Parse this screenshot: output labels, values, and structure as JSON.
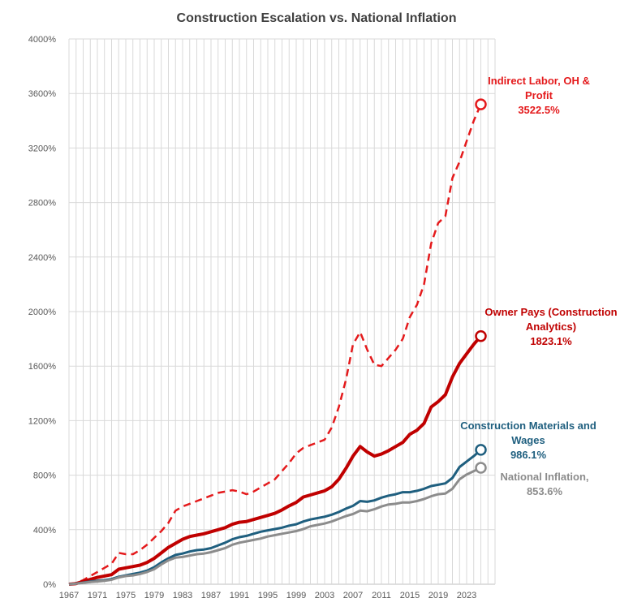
{
  "chart_data": {
    "type": "line",
    "title": "Construction Escalation vs. National Inflation",
    "xlabel": "",
    "ylabel": "",
    "ylim": [
      0,
      40
    ],
    "ytick_labels": [
      "0%",
      "400%",
      "800%",
      "1200%",
      "1600%",
      "2000%",
      "2400%",
      "2800%",
      "3200%",
      "3600%",
      "4000%"
    ],
    "xtick_labels": [
      "1967",
      "1971",
      "1975",
      "1979",
      "1983",
      "1987",
      "1991",
      "1995",
      "1999",
      "2003",
      "2007",
      "2011",
      "2015",
      "2019",
      "2023"
    ],
    "grid": true,
    "legend": "inline annotations at line ends",
    "x": [
      1967,
      1968,
      1969,
      1970,
      1971,
      1972,
      1973,
      1974,
      1975,
      1976,
      1977,
      1978,
      1979,
      1980,
      1981,
      1982,
      1983,
      1984,
      1985,
      1986,
      1987,
      1988,
      1989,
      1990,
      1991,
      1992,
      1993,
      1994,
      1995,
      1996,
      1997,
      1998,
      1999,
      2000,
      2001,
      2002,
      2003,
      2004,
      2005,
      2006,
      2007,
      2008,
      2009,
      2010,
      2011,
      2012,
      2013,
      2014,
      2015,
      2016,
      2017,
      2018,
      2019,
      2020,
      2021,
      2022,
      2023,
      2024,
      2025
    ],
    "series": [
      {
        "color": "#e41a1c",
        "style": "dashed",
        "values": [
          0,
          0.1,
          0.3,
          0.6,
          0.9,
          1.2,
          1.5,
          2.3,
          2.2,
          2.2,
          2.5,
          2.9,
          3.4,
          3.9,
          4.5,
          5.4,
          5.7,
          5.9,
          6.1,
          6.3,
          6.5,
          6.7,
          6.8,
          6.9,
          6.8,
          6.6,
          6.8,
          7.1,
          7.4,
          7.7,
          8.3,
          8.9,
          9.6,
          10.0,
          10.2,
          10.4,
          10.6,
          11.5,
          13.0,
          15.0,
          17.6,
          18.5,
          17.2,
          16.1,
          16.0,
          16.6,
          17.2,
          18.0,
          19.6,
          20.5,
          22.0,
          25.0,
          26.5,
          27.0,
          29.8,
          31.0,
          32.5,
          34.0,
          35.2
        ]
      },
      {
        "color": "#c00000",
        "style": "solid",
        "values": [
          0,
          0.05,
          0.2,
          0.35,
          0.5,
          0.6,
          0.7,
          1.1,
          1.2,
          1.3,
          1.4,
          1.6,
          1.9,
          2.3,
          2.7,
          3.0,
          3.3,
          3.5,
          3.6,
          3.7,
          3.85,
          4.0,
          4.15,
          4.4,
          4.55,
          4.6,
          4.75,
          4.9,
          5.05,
          5.2,
          5.45,
          5.75,
          6.0,
          6.4,
          6.55,
          6.7,
          6.85,
          7.15,
          7.7,
          8.5,
          9.4,
          10.1,
          9.7,
          9.4,
          9.55,
          9.8,
          10.1,
          10.4,
          11.0,
          11.3,
          11.8,
          13.0,
          13.4,
          13.9,
          15.2,
          16.2,
          16.9,
          17.6,
          18.2
        ]
      },
      {
        "color": "#1f5f7f",
        "style": "solid",
        "values": [
          0,
          0.05,
          0.12,
          0.2,
          0.25,
          0.3,
          0.38,
          0.55,
          0.65,
          0.75,
          0.85,
          1.0,
          1.25,
          1.6,
          1.9,
          2.15,
          2.25,
          2.4,
          2.5,
          2.55,
          2.65,
          2.85,
          3.05,
          3.3,
          3.45,
          3.55,
          3.7,
          3.85,
          3.95,
          4.05,
          4.15,
          4.3,
          4.4,
          4.6,
          4.75,
          4.85,
          4.95,
          5.1,
          5.3,
          5.55,
          5.75,
          6.1,
          6.05,
          6.15,
          6.35,
          6.5,
          6.6,
          6.75,
          6.75,
          6.85,
          7.0,
          7.2,
          7.3,
          7.4,
          7.8,
          8.6,
          9.0,
          9.4,
          9.86
        ]
      },
      {
        "color": "#8c8c8c",
        "style": "solid",
        "values": [
          0,
          0.04,
          0.1,
          0.16,
          0.2,
          0.25,
          0.33,
          0.5,
          0.6,
          0.65,
          0.75,
          0.9,
          1.1,
          1.45,
          1.75,
          1.95,
          2.0,
          2.1,
          2.2,
          2.25,
          2.35,
          2.5,
          2.65,
          2.9,
          3.05,
          3.15,
          3.25,
          3.35,
          3.5,
          3.6,
          3.7,
          3.8,
          3.9,
          4.05,
          4.25,
          4.35,
          4.45,
          4.6,
          4.8,
          5.0,
          5.15,
          5.4,
          5.35,
          5.5,
          5.7,
          5.85,
          5.9,
          6.0,
          6.0,
          6.1,
          6.25,
          6.45,
          6.6,
          6.65,
          7.0,
          7.7,
          8.05,
          8.3,
          8.54
        ]
      }
    ],
    "annotations": [
      {
        "lines": [
          "Indirect Labor, OH &",
          "Profit",
          "3522.5%"
        ],
        "color": "#e41a1c"
      },
      {
        "lines": [
          "Owner Pays (Construction",
          "Analytics)",
          "1823.1%"
        ],
        "color": "#c00000"
      },
      {
        "lines": [
          "Construction Materials and",
          "Wages",
          "986.1%"
        ],
        "color": "#1f5f7f"
      },
      {
        "lines": [
          "National Inflation,",
          "853.6%"
        ],
        "color": "#8c8c8c"
      }
    ]
  }
}
